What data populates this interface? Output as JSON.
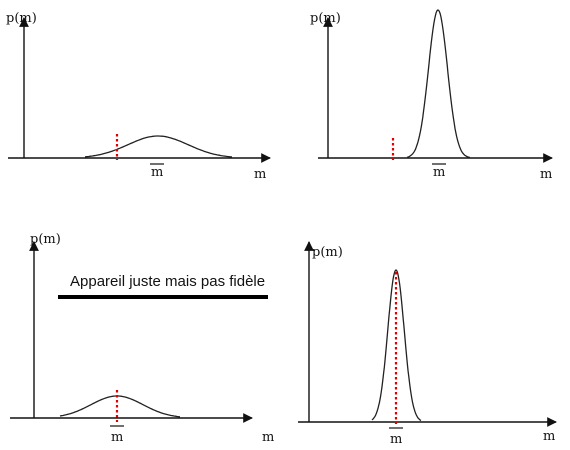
{
  "colors": {
    "axis": "#111111",
    "curve": "#222222",
    "marker": "#e00000",
    "caption_rule": "#000000"
  },
  "panels": [
    {
      "id": "top-left",
      "y_label": "p(m)",
      "x_label": "m",
      "mean_label": "m",
      "shape": "wide-low",
      "marker_offset_from_mean": "left",
      "description": ""
    },
    {
      "id": "top-right",
      "y_label": "p(m)",
      "x_label": "m",
      "mean_label": "m",
      "shape": "narrow-tall",
      "marker_offset_from_mean": "left-far",
      "description": ""
    },
    {
      "id": "bottom-left",
      "y_label": "p(m)",
      "x_label": "m",
      "mean_label": "m",
      "shape": "wide-low",
      "marker_offset_from_mean": "on-mean",
      "description": "Appareil juste mais pas fidèle"
    },
    {
      "id": "bottom-right",
      "y_label": "p(m)",
      "x_label": "m",
      "mean_label": "m",
      "shape": "narrow-tall",
      "marker_offset_from_mean": "on-mean",
      "description": ""
    }
  ]
}
